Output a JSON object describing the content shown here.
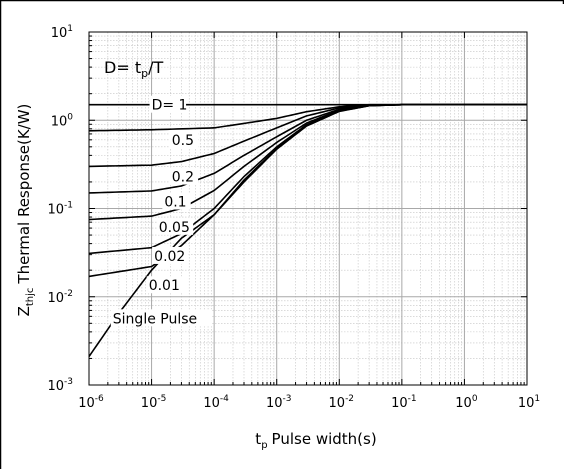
{
  "chart_data": {
    "type": "line",
    "title": "",
    "xlabel": "Pulse width(s)",
    "xlabel_prefix": "t",
    "xlabel_sub": "p",
    "ylabel": "Thermal Response(K/W)",
    "ylabel_prefix": "Z",
    "ylabel_sub": "thjc",
    "x_scale": "log",
    "y_scale": "log",
    "xlim": [
      1e-06,
      10
    ],
    "ylim": [
      0.001,
      10
    ],
    "x_tick_labels": [
      "10-6",
      "10-5",
      "10-4",
      "10-3",
      "10-2",
      "10-1",
      "100",
      "101"
    ],
    "y_tick_labels": [
      "10-3",
      "10-2",
      "10-1",
      "100",
      "101"
    ],
    "grid": true,
    "annotation": {
      "text_before": "D= t",
      "text_sub": "p",
      "text_after": "/T"
    },
    "series": [
      {
        "name": "D= 1",
        "x": [
          1e-06,
          1e-05,
          0.0001,
          0.001,
          0.01,
          0.1,
          1,
          10
        ],
        "y": [
          1.5,
          1.5,
          1.5,
          1.5,
          1.5,
          1.5,
          1.5,
          1.5
        ]
      },
      {
        "name": "0.5",
        "x": [
          1e-06,
          1e-05,
          0.0001,
          0.0003,
          0.001,
          0.003,
          0.01,
          0.03,
          0.1,
          10
        ],
        "y": [
          0.76,
          0.78,
          0.82,
          0.92,
          1.05,
          1.25,
          1.42,
          1.5,
          1.5,
          1.5
        ]
      },
      {
        "name": "0.2",
        "x": [
          1e-06,
          1e-05,
          3e-05,
          0.0001,
          0.0003,
          0.001,
          0.003,
          0.01,
          0.03,
          0.1,
          10
        ],
        "y": [
          0.3,
          0.31,
          0.34,
          0.42,
          0.58,
          0.82,
          1.12,
          1.38,
          1.49,
          1.5,
          1.5
        ]
      },
      {
        "name": "0.1",
        "x": [
          1e-06,
          1e-05,
          3e-05,
          0.0001,
          0.0003,
          0.001,
          0.003,
          0.01,
          0.03,
          0.1,
          10
        ],
        "y": [
          0.15,
          0.158,
          0.18,
          0.25,
          0.4,
          0.65,
          1.0,
          1.33,
          1.48,
          1.5,
          1.5
        ]
      },
      {
        "name": "0.05",
        "x": [
          1e-06,
          1e-05,
          3e-05,
          0.0001,
          0.0003,
          0.001,
          0.003,
          0.01,
          0.03,
          0.1,
          10
        ],
        "y": [
          0.075,
          0.082,
          0.1,
          0.16,
          0.3,
          0.56,
          0.93,
          1.3,
          1.47,
          1.5,
          1.5
        ]
      },
      {
        "name": "0.02",
        "x": [
          1e-06,
          1e-05,
          3e-05,
          0.0001,
          0.0003,
          0.001,
          0.003,
          0.01,
          0.03,
          0.1,
          10
        ],
        "y": [
          0.031,
          0.036,
          0.052,
          0.1,
          0.23,
          0.5,
          0.89,
          1.28,
          1.47,
          1.5,
          1.5
        ]
      },
      {
        "name": "0.01",
        "x": [
          1e-06,
          1e-05,
          3e-05,
          0.0001,
          0.0003,
          0.001,
          0.003,
          0.01,
          0.03,
          0.1,
          10
        ],
        "y": [
          0.017,
          0.022,
          0.038,
          0.085,
          0.21,
          0.48,
          0.87,
          1.27,
          1.46,
          1.5,
          1.5
        ]
      },
      {
        "name": "Single Pulse",
        "x": [
          1e-06,
          3e-06,
          1e-05,
          3e-05,
          0.0001,
          0.0003,
          0.001,
          0.003,
          0.01,
          0.03,
          0.1,
          10
        ],
        "y": [
          0.0021,
          0.0065,
          0.02,
          0.046,
          0.085,
          0.2,
          0.47,
          0.86,
          1.26,
          1.46,
          1.5,
          1.5
        ]
      }
    ]
  }
}
